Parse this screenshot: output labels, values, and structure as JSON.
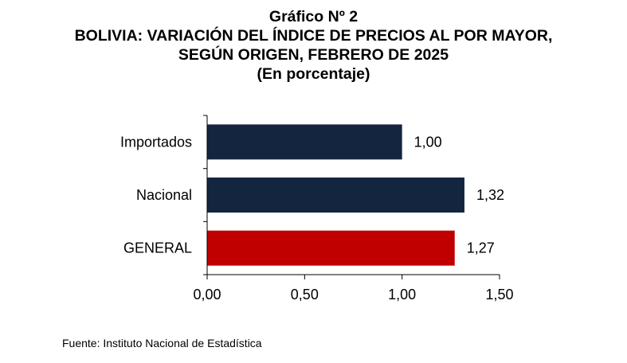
{
  "chart_data": {
    "type": "bar",
    "orientation": "horizontal",
    "title_lines": [
      "Gráfico Nº 2",
      "BOLIVIA: VARIACIÓN DEL ÍNDICE DE PRECIOS AL POR MAYOR,",
      "SEGÚN ORIGEN, FEBRERO DE 2025",
      "(En porcentaje)"
    ],
    "categories": [
      "Importados",
      "Nacional",
      "GENERAL"
    ],
    "values": [
      1.0,
      1.32,
      1.27
    ],
    "value_labels": [
      "1,00",
      "1,32",
      "1,27"
    ],
    "bar_colors": [
      "#14263f",
      "#14263f",
      "#c00000"
    ],
    "xlim": [
      0,
      1.5
    ],
    "x_ticks": [
      0,
      0.5,
      1.0,
      1.5
    ],
    "x_tick_labels": [
      "0,00",
      "0,50",
      "1,00",
      "1,50"
    ],
    "xlabel": "",
    "ylabel": "",
    "grid": false,
    "legend": "none",
    "source": "Fuente: Instituto Nacional de Estadística"
  }
}
